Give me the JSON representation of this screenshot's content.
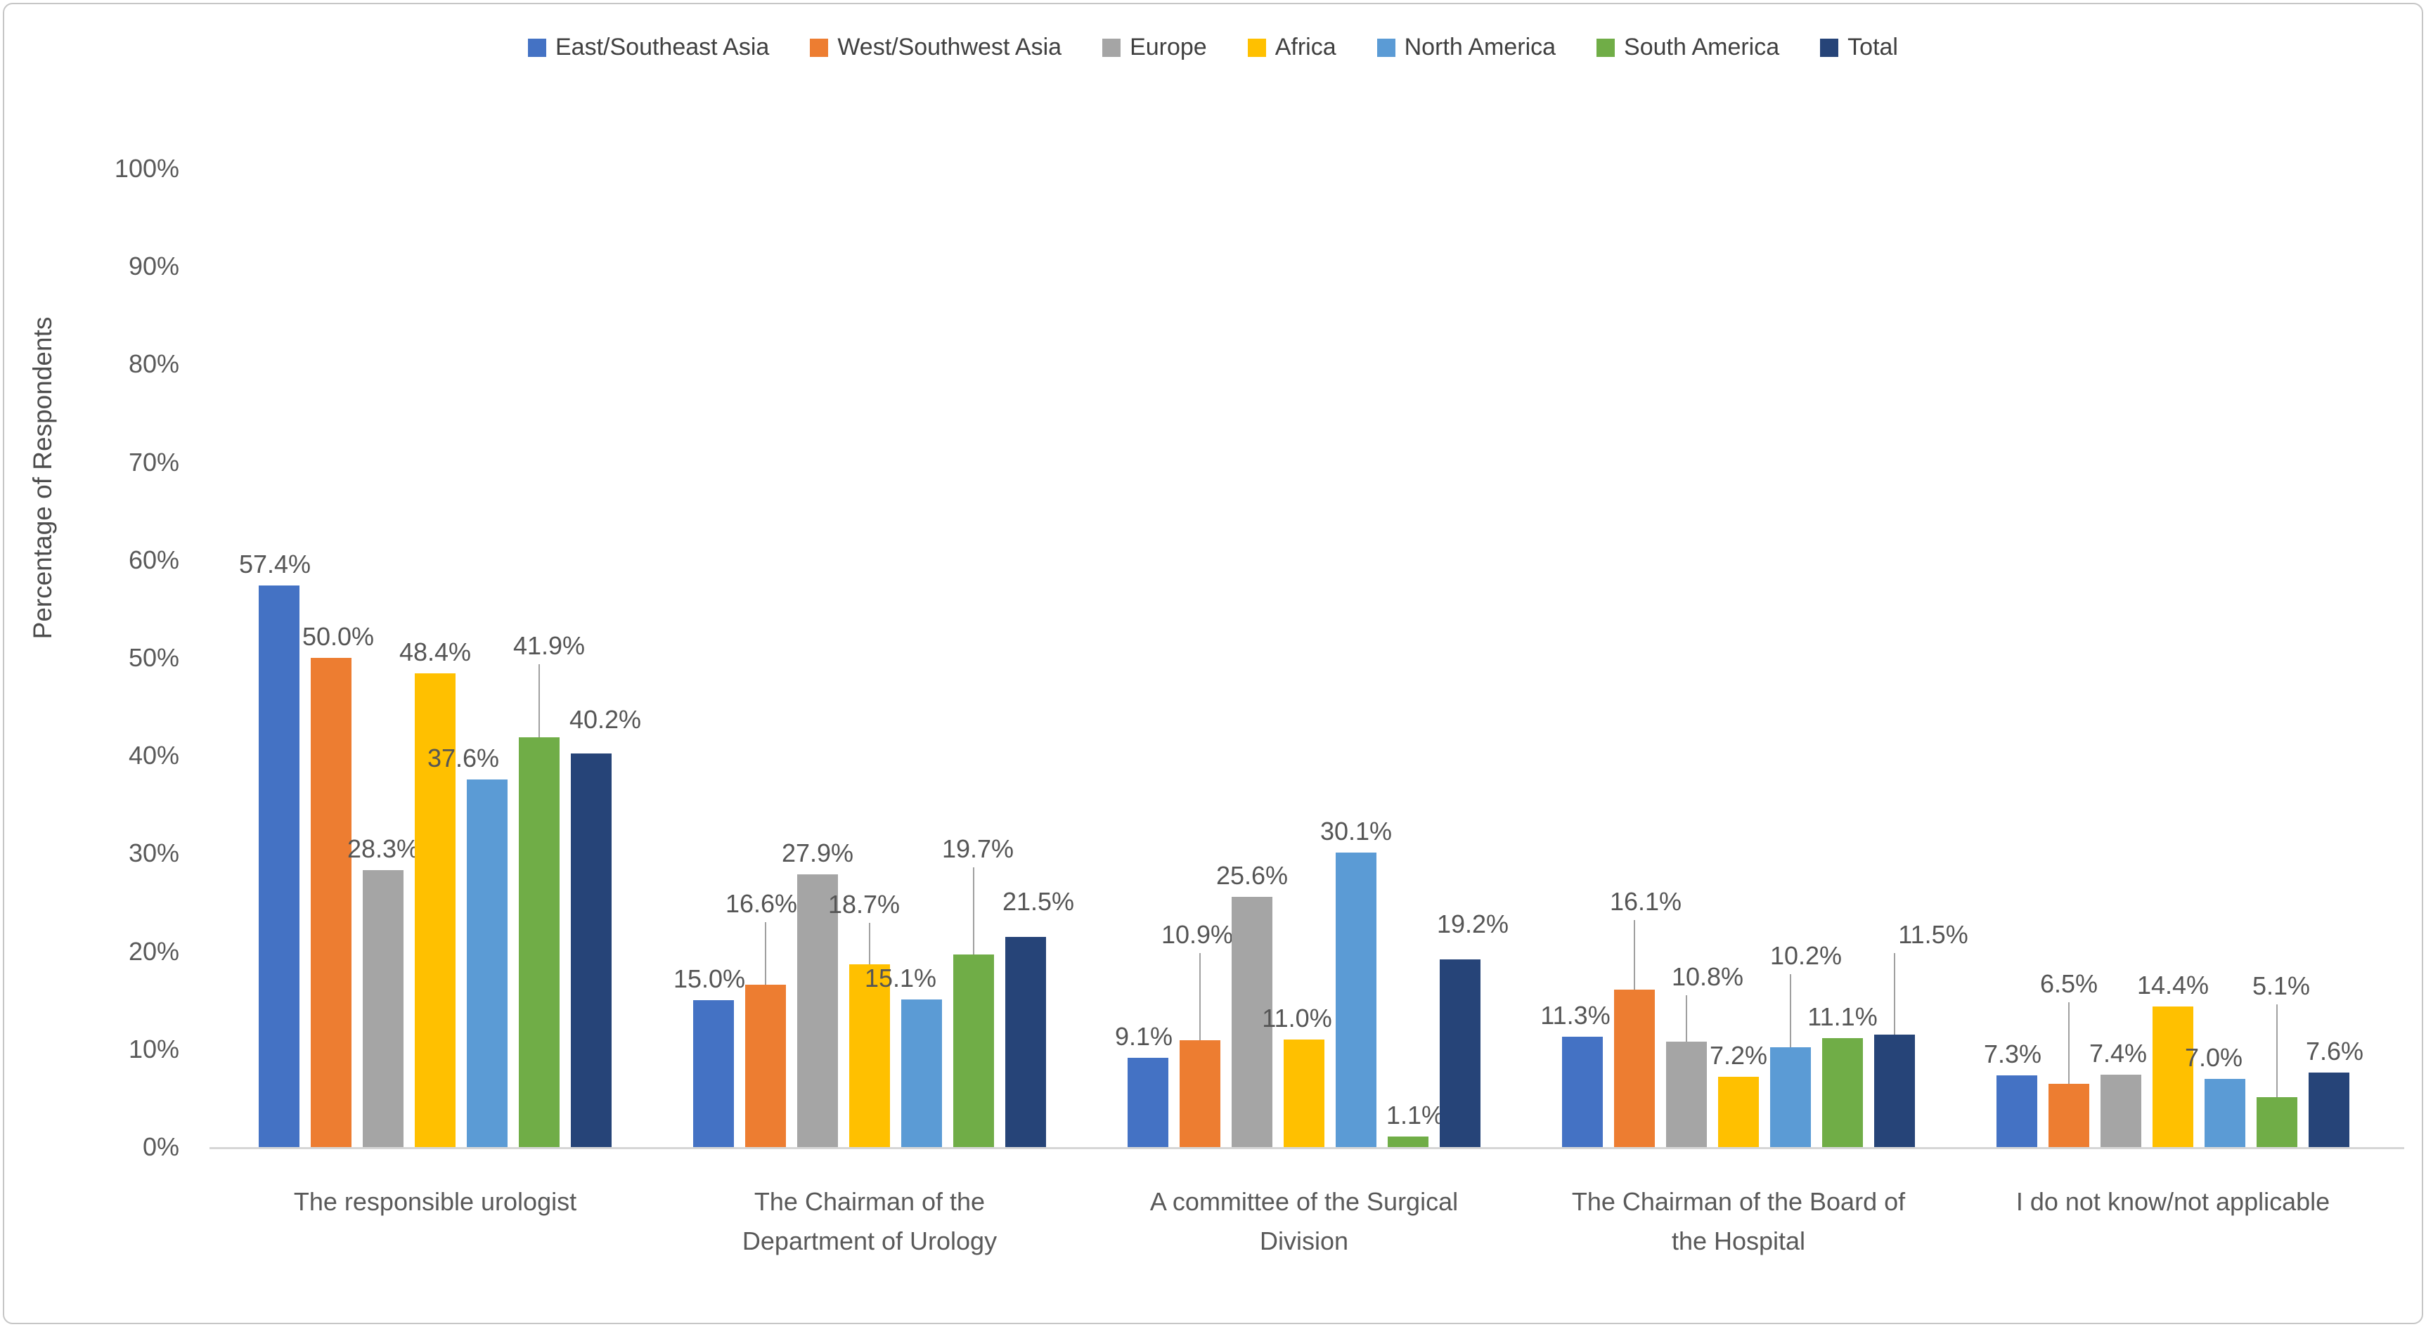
{
  "figure": {
    "background": "#ffffff",
    "frame_border_color": "#c6c6c6"
  },
  "chart_data": {
    "type": "bar",
    "title": "",
    "xlabel": "",
    "ylabel": "Percentage of Respondents",
    "ylim": [
      0,
      100
    ],
    "y_tick_step": 10,
    "y_ticks": [
      "0%",
      "10%",
      "20%",
      "30%",
      "40%",
      "50%",
      "60%",
      "70%",
      "80%",
      "90%",
      "100%"
    ],
    "grid": false,
    "legend_position": "top-center",
    "data_label_format": "one-decimal-percent",
    "categories": [
      "The responsible urologist",
      "The Chairman of the\nDepartment of Urology",
      "A committee of the Surgical\nDivision",
      "The Chairman of the Board of\nthe Hospital",
      "I do not know/not applicable"
    ],
    "series": [
      {
        "name": "East/Southeast Asia",
        "color": "#4472C4",
        "values": [
          57.4,
          15.0,
          9.1,
          11.3,
          7.3
        ]
      },
      {
        "name": "West/Southwest Asia",
        "color": "#ED7D31",
        "values": [
          50.0,
          16.6,
          10.9,
          16.1,
          6.5
        ]
      },
      {
        "name": "Europe",
        "color": "#A5A5A5",
        "values": [
          28.3,
          27.9,
          25.6,
          10.8,
          7.4
        ]
      },
      {
        "name": "Africa",
        "color": "#FFC000",
        "values": [
          48.4,
          18.7,
          11.0,
          7.2,
          14.4
        ]
      },
      {
        "name": "North America",
        "color": "#5B9BD5",
        "values": [
          37.6,
          15.1,
          30.1,
          10.2,
          7.0
        ]
      },
      {
        "name": "South America",
        "color": "#70AD47",
        "values": [
          41.9,
          19.7,
          1.1,
          11.1,
          5.1
        ]
      },
      {
        "name": "Total",
        "color": "#264478",
        "values": [
          40.2,
          21.5,
          19.2,
          11.5,
          7.6
        ]
      }
    ],
    "text_colors": {
      "data_label": "#555555",
      "axis_tick": "#595959",
      "axis_title": "#4d4d4d",
      "legend": "#404040",
      "category": "#595959"
    }
  }
}
